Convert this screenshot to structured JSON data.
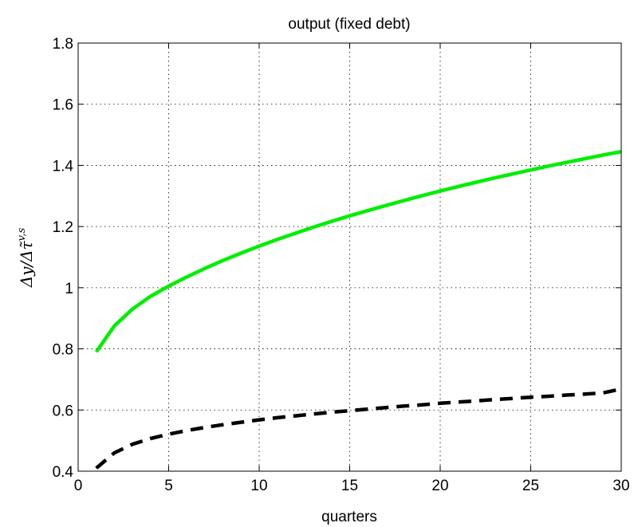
{
  "chart_data": {
    "type": "line",
    "title": "output (fixed debt)",
    "xlabel": "quarters",
    "ylabel": "Δy/Δτ̃^{v,s}",
    "ylabel_main": "Δy/Δτ̃",
    "ylabel_sup": "v,s",
    "xlim": [
      0,
      30
    ],
    "ylim": [
      0.4,
      1.8
    ],
    "xticks": [
      0,
      5,
      10,
      15,
      20,
      25,
      30
    ],
    "yticks": [
      0.4,
      0.6,
      0.8,
      1,
      1.2,
      1.4,
      1.6,
      1.8
    ],
    "xtick_labels": [
      "0",
      "5",
      "10",
      "15",
      "20",
      "25",
      "30"
    ],
    "ytick_labels": [
      "0.4",
      "0.6",
      "0.8",
      "1",
      "1.2",
      "1.4",
      "1.6",
      "1.8"
    ],
    "grid": true,
    "series": [
      {
        "color": "#00ee00",
        "style": "solid",
        "x": [
          1,
          2,
          3,
          4,
          5,
          6,
          7,
          8,
          9,
          10,
          11,
          12,
          13,
          14,
          15,
          16,
          17,
          18,
          19,
          20,
          21,
          22,
          23,
          24,
          25,
          26,
          27,
          28,
          29,
          30
        ],
        "y": [
          0.79,
          0.875,
          0.93,
          0.972,
          1.005,
          1.035,
          1.063,
          1.089,
          1.113,
          1.136,
          1.158,
          1.178,
          1.198,
          1.217,
          1.235,
          1.252,
          1.269,
          1.285,
          1.301,
          1.316,
          1.331,
          1.345,
          1.359,
          1.372,
          1.385,
          1.398,
          1.41,
          1.422,
          1.434,
          1.445
        ]
      },
      {
        "color": "#000000",
        "style": "dashed",
        "x": [
          1,
          2,
          3,
          4,
          5,
          6,
          7,
          8,
          9,
          10,
          11,
          12,
          13,
          14,
          15,
          16,
          17,
          18,
          19,
          20,
          21,
          22,
          23,
          24,
          25,
          26,
          27,
          28,
          29,
          30
        ],
        "y": [
          0.41,
          0.46,
          0.488,
          0.507,
          0.521,
          0.533,
          0.543,
          0.552,
          0.56,
          0.568,
          0.575,
          0.581,
          0.587,
          0.593,
          0.598,
          0.603,
          0.608,
          0.613,
          0.617,
          0.622,
          0.626,
          0.63,
          0.634,
          0.638,
          0.642,
          0.645,
          0.649,
          0.652,
          0.656,
          0.669
        ]
      }
    ]
  }
}
